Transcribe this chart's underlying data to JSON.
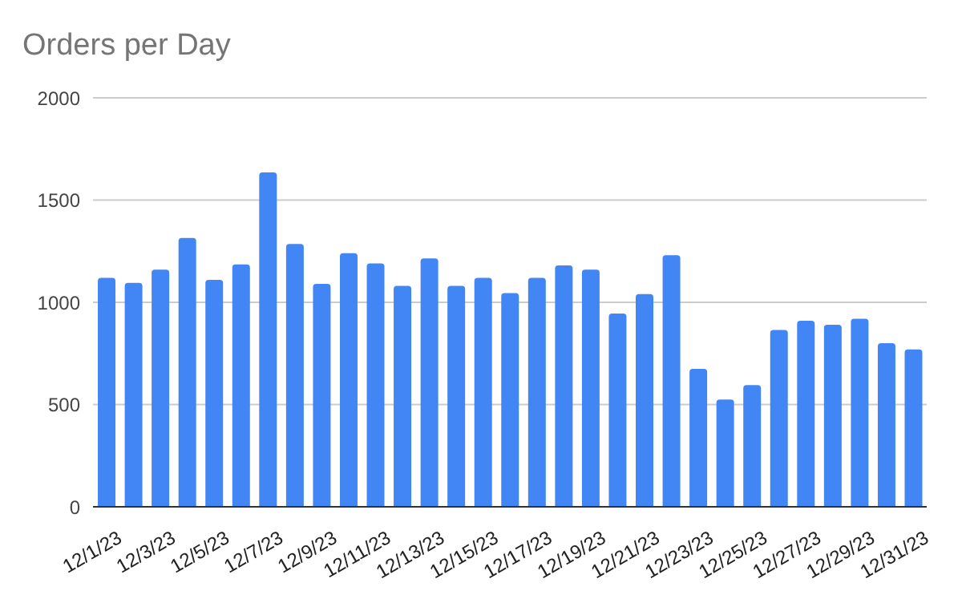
{
  "chart_data": {
    "type": "bar",
    "title": "Orders per Day",
    "categories": [
      "12/1/23",
      null,
      "12/3/23",
      null,
      "12/5/23",
      null,
      "12/7/23",
      null,
      "12/9/23",
      null,
      "12/11/23",
      null,
      "12/13/23",
      null,
      "12/15/23",
      null,
      "12/17/23",
      null,
      "12/19/23",
      null,
      "12/21/23",
      null,
      "12/23/23",
      null,
      "12/25/23",
      null,
      "12/27/23",
      null,
      "12/29/23",
      null,
      "12/31/23"
    ],
    "values": [
      1120,
      1095,
      1160,
      1315,
      1110,
      1185,
      1635,
      1285,
      1090,
      1240,
      1190,
      1080,
      1215,
      1080,
      1120,
      1045,
      1120,
      1180,
      1160,
      945,
      1040,
      1230,
      675,
      525,
      595,
      865,
      910,
      890,
      920,
      800,
      770
    ],
    "color": "#4285f4",
    "ylim": [
      0,
      2000
    ],
    "yticks": [
      0,
      500,
      1000,
      1500,
      2000
    ],
    "grid": "y",
    "legend": false
  }
}
